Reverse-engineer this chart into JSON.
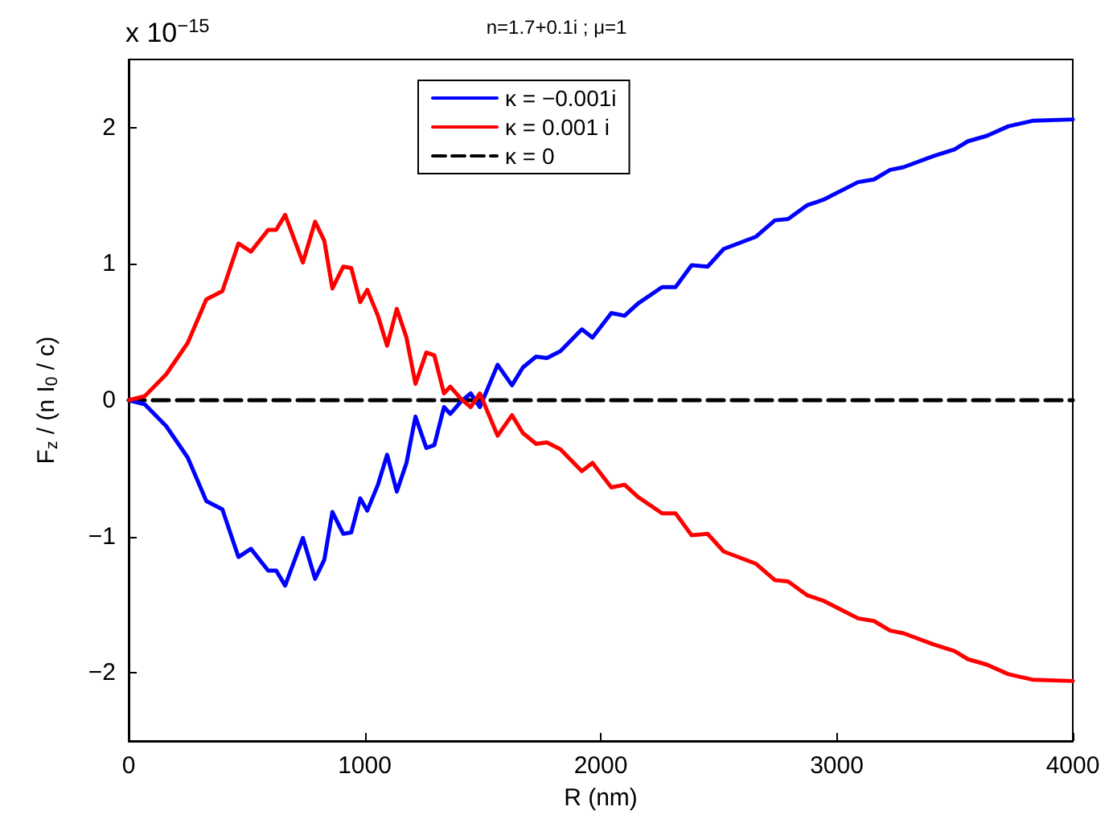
{
  "chart_data": {
    "type": "line",
    "title": "n=1.7+0.1i ; μ=1",
    "xlabel": "R (nm)",
    "ylabel": "F$_{z}$ / (n I$_{0}$ / c)",
    "annotations": [
      "x 10$^{−15}$"
    ],
    "xlim": [
      0,
      4000
    ],
    "xticks": [
      0,
      1000,
      2000,
      3000,
      4000
    ],
    "ylim": [
      -2.5,
      2.5
    ],
    "yticks": [
      -2,
      -1,
      0,
      1,
      2
    ],
    "grid": false,
    "legend": "top",
    "marker": "none",
    "line_style": "solid",
    "series": [
      {
        "name": "κ = −0.001i",
        "color": "#0000ff",
        "x": [
          0,
          68,
          159,
          250,
          329,
          397,
          465,
          518,
          591,
          625,
          663,
          738,
          790,
          829,
          863,
          909,
          943,
          981,
          1011,
          1056,
          1095,
          1136,
          1177,
          1215,
          1261,
          1295,
          1336,
          1363,
          1408,
          1449,
          1488,
          1522,
          1563,
          1624,
          1670,
          1726,
          1772,
          1829,
          1920,
          1965,
          2045,
          2101,
          2158,
          2260,
          2317,
          2385,
          2453,
          2521,
          2658,
          2738,
          2794,
          2874,
          2942,
          3090,
          3158,
          3226,
          3283,
          3408,
          3499,
          3556,
          3636,
          3727,
          3829,
          4000
        ],
        "values": [
          0,
          -0.03,
          -0.19,
          -0.42,
          -0.74,
          -0.8,
          -1.15,
          -1.09,
          -1.25,
          -1.25,
          -1.36,
          -1.01,
          -1.31,
          -1.17,
          -0.82,
          -0.98,
          -0.97,
          -0.72,
          -0.81,
          -0.62,
          -0.4,
          -0.67,
          -0.46,
          -0.12,
          -0.35,
          -0.33,
          -0.05,
          -0.1,
          -0.01,
          0.05,
          -0.05,
          0.09,
          0.26,
          0.11,
          0.24,
          0.32,
          0.31,
          0.36,
          0.52,
          0.46,
          0.64,
          0.62,
          0.71,
          0.83,
          0.83,
          0.99,
          0.98,
          1.11,
          1.2,
          1.32,
          1.33,
          1.43,
          1.47,
          1.6,
          1.62,
          1.69,
          1.71,
          1.79,
          1.84,
          1.9,
          1.94,
          2.01,
          2.05,
          2.06
        ]
      },
      {
        "name": "κ = 0.001 i",
        "color": "#ff0000",
        "x": [
          0,
          68,
          159,
          250,
          329,
          397,
          465,
          518,
          591,
          625,
          663,
          738,
          790,
          829,
          863,
          909,
          943,
          981,
          1011,
          1056,
          1095,
          1136,
          1177,
          1215,
          1261,
          1295,
          1336,
          1363,
          1408,
          1449,
          1488,
          1522,
          1563,
          1624,
          1670,
          1726,
          1772,
          1829,
          1920,
          1965,
          2045,
          2101,
          2158,
          2260,
          2317,
          2385,
          2453,
          2521,
          2658,
          2738,
          2794,
          2874,
          2942,
          3090,
          3158,
          3226,
          3283,
          3408,
          3499,
          3556,
          3636,
          3727,
          3829,
          4000
        ],
        "values": [
          0,
          0.03,
          0.19,
          0.42,
          0.74,
          0.8,
          1.15,
          1.09,
          1.25,
          1.25,
          1.36,
          1.01,
          1.31,
          1.17,
          0.82,
          0.98,
          0.97,
          0.72,
          0.81,
          0.62,
          0.4,
          0.67,
          0.46,
          0.12,
          0.35,
          0.33,
          0.05,
          0.1,
          0.01,
          -0.05,
          0.05,
          -0.09,
          -0.26,
          -0.11,
          -0.24,
          -0.32,
          -0.31,
          -0.36,
          -0.52,
          -0.46,
          -0.64,
          -0.62,
          -0.71,
          -0.83,
          -0.83,
          -0.99,
          -0.98,
          -1.11,
          -1.2,
          -1.32,
          -1.33,
          -1.43,
          -1.47,
          -1.6,
          -1.62,
          -1.69,
          -1.71,
          -1.79,
          -1.84,
          -1.9,
          -1.94,
          -2.01,
          -2.05,
          -2.06
        ]
      },
      {
        "name": "κ = 0",
        "color": "#000000",
        "line_style": "dashed",
        "x": [
          0,
          4000
        ],
        "values": [
          0,
          0
        ]
      }
    ]
  }
}
